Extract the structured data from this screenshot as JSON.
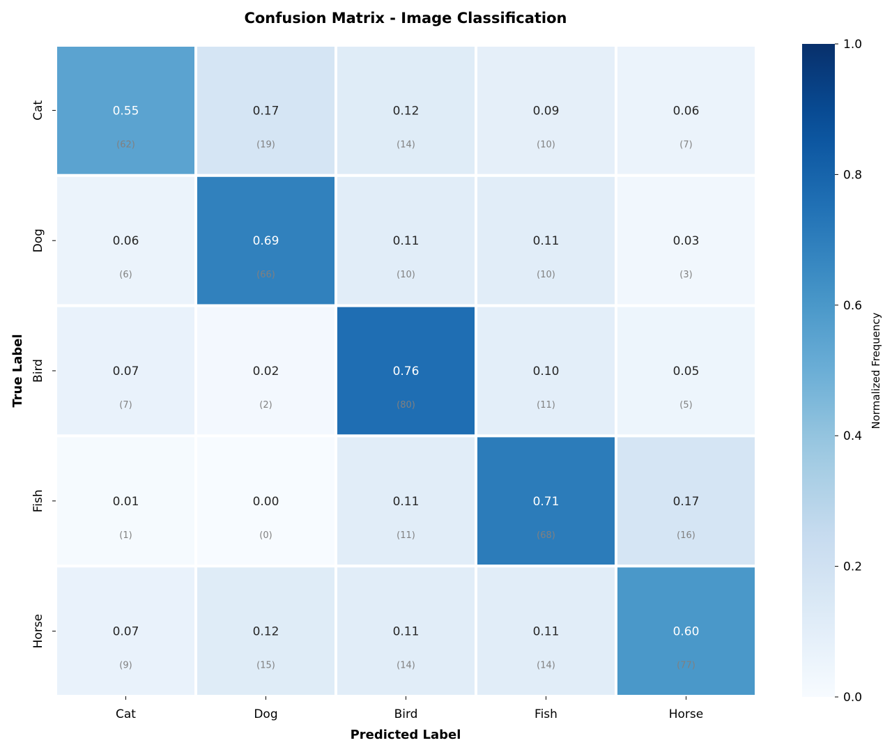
{
  "chart_data": {
    "type": "heatmap",
    "title": "Confusion Matrix - Image Classification",
    "xlabel": "Predicted Label",
    "ylabel": "True Label",
    "x_categories": [
      "Cat",
      "Dog",
      "Bird",
      "Fish",
      "Horse"
    ],
    "y_categories": [
      "Cat",
      "Dog",
      "Bird",
      "Fish",
      "Horse"
    ],
    "values": [
      [
        0.55,
        0.17,
        0.12,
        0.09,
        0.06
      ],
      [
        0.06,
        0.69,
        0.11,
        0.11,
        0.03
      ],
      [
        0.07,
        0.02,
        0.76,
        0.1,
        0.05
      ],
      [
        0.01,
        0.0,
        0.11,
        0.71,
        0.17
      ],
      [
        0.07,
        0.12,
        0.11,
        0.11,
        0.6
      ]
    ],
    "counts": [
      [
        62,
        19,
        14,
        10,
        7
      ],
      [
        6,
        66,
        10,
        10,
        3
      ],
      [
        7,
        2,
        80,
        11,
        5
      ],
      [
        1,
        0,
        11,
        68,
        16
      ],
      [
        9,
        15,
        14,
        14,
        77
      ]
    ],
    "colormap": "Blues",
    "colorbar": {
      "label": "Normalized Frequency",
      "range": [
        0.0,
        1.0
      ],
      "ticks": [
        "0.0",
        "0.2",
        "0.4",
        "0.6",
        "0.8",
        "1.0"
      ]
    }
  }
}
